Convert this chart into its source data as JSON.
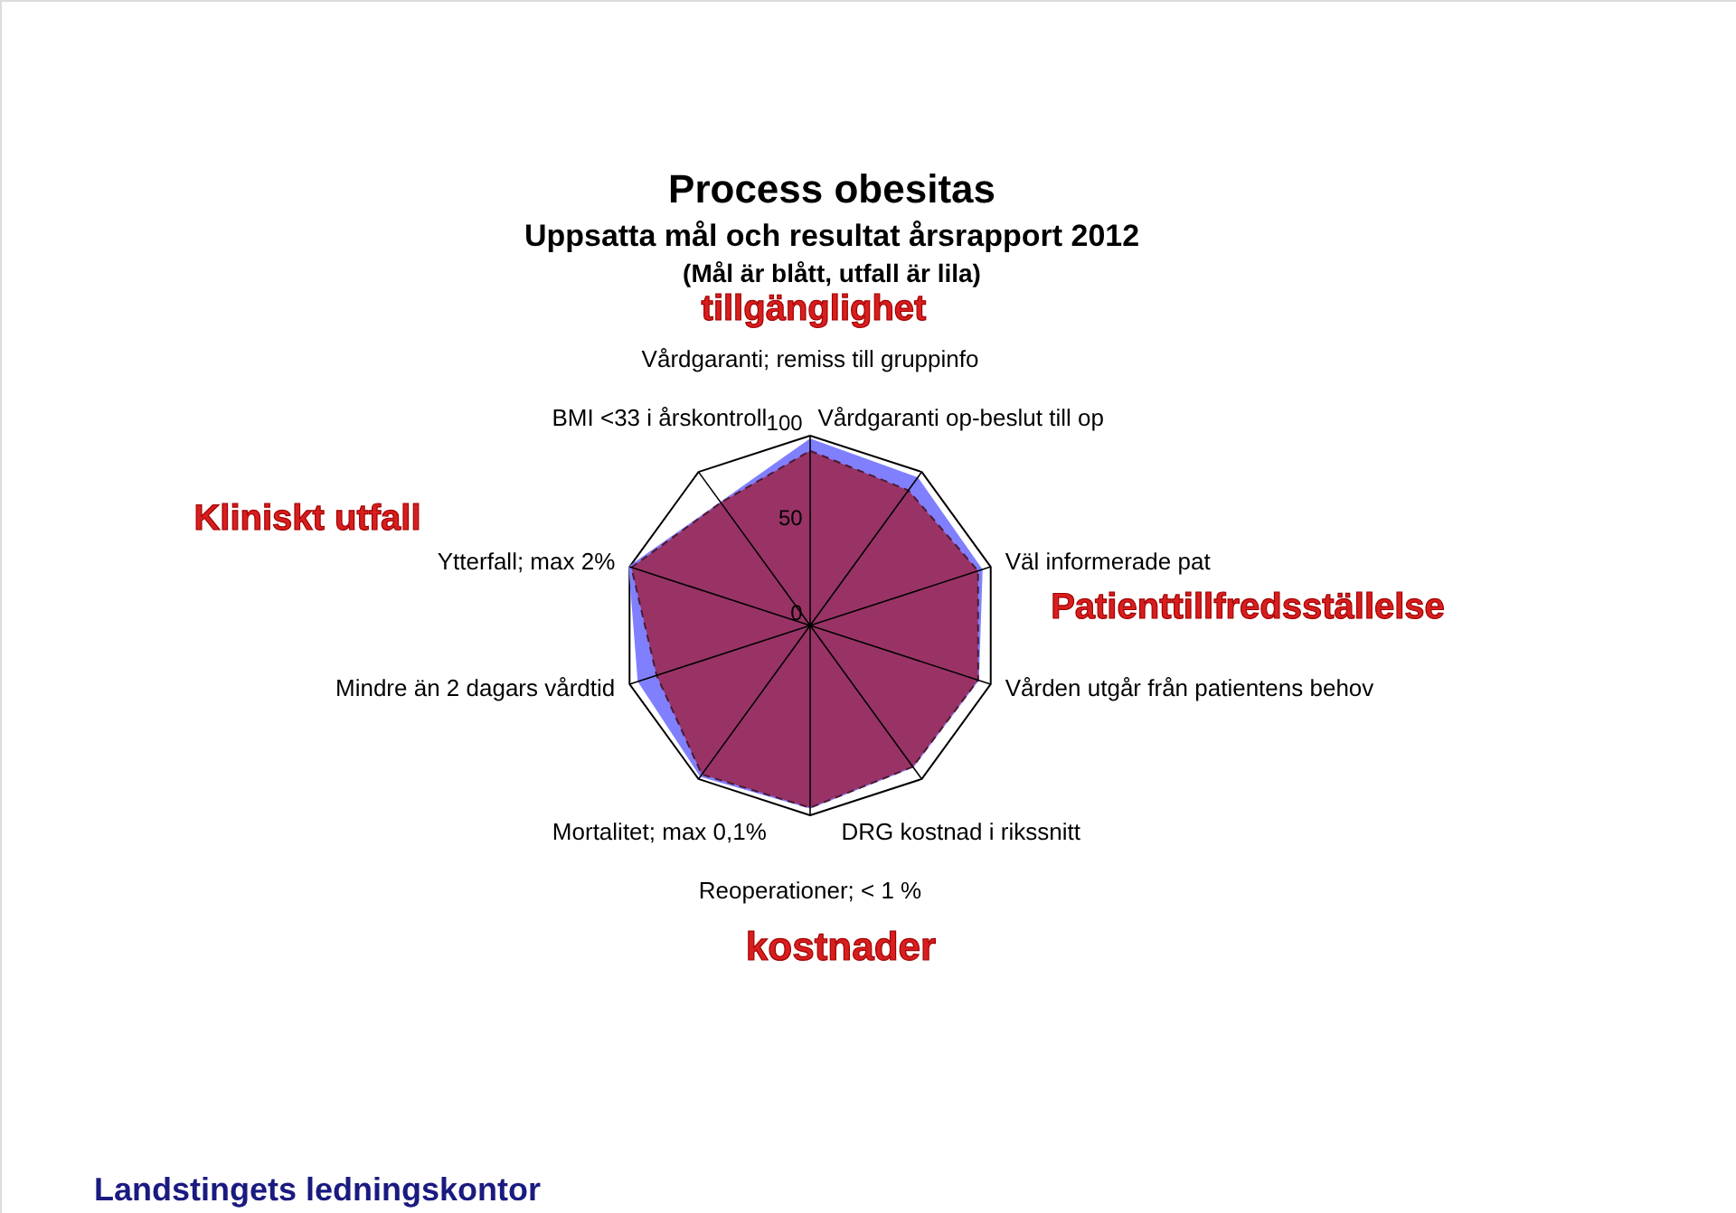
{
  "chart_data": {
    "type": "radar",
    "title": "Process obesitas",
    "subtitle": "Uppsatta mål och resultat årsrapport 2012",
    "categories": [
      "Vårdgaranti;  remiss till gruppinfo",
      "Vårdgaranti op-beslut till op",
      "Väl informerade pat",
      "Vården utgår från patientens behov",
      "DRG kostnad i rikssnitt",
      "Reoperationer; < 1 %",
      "Mortalitet; max 0,1%",
      "Mindre än 2 dagars vårdtid",
      "Ytterfall; max 2%",
      "BMI <33 i årskontroll"
    ],
    "series": [
      {
        "color": "#8080ff",
        "line_style": "solid",
        "values": [
          98,
          96,
          95,
          93,
          92,
          96,
          98,
          95,
          100,
          80
        ]
      },
      {
        "color": "#993366",
        "line_style": "dashed",
        "values": [
          92,
          88,
          93,
          93,
          92,
          96,
          97,
          85,
          99,
          80
        ]
      }
    ],
    "ylim": [
      0,
      100
    ],
    "yticks": [
      0,
      50,
      100
    ],
    "grid": "x",
    "annotations": [
      "(Mål är blått, utfall är lila)",
      "tillgänglighet",
      "Kliniskt utfall",
      "Patienttillfredsställelse",
      "kostnader",
      "Landstingets ledningskontor"
    ]
  }
}
